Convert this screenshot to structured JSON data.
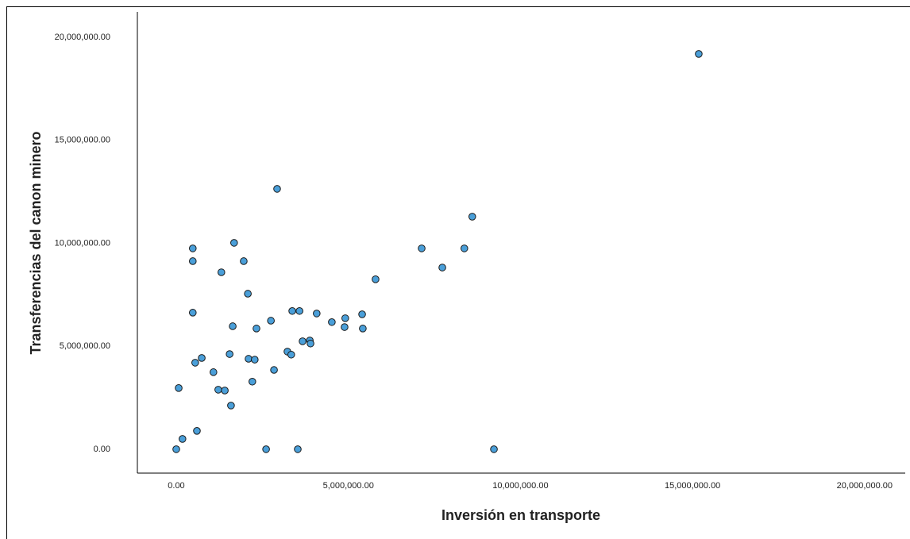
{
  "chart_data": {
    "type": "scatter",
    "x_label": "Inversión en transporte",
    "y_label": "Transferencias del canon minero",
    "x": [
      15180000,
      2930000,
      8600000,
      7130000,
      8370000,
      1680000,
      480000,
      480000,
      1960000,
      1310000,
      7730000,
      5790000,
      2080000,
      480000,
      3370000,
      3580000,
      4080000,
      5400000,
      4910000,
      2750000,
      4520000,
      1640000,
      4890000,
      2330000,
      5420000,
      3880000,
      3670000,
      3900000,
      3230000,
      3340000,
      1550000,
      740000,
      550000,
      2100000,
      2280000,
      2840000,
      1080000,
      2210000,
      70000,
      1220000,
      1410000,
      1590000,
      600000,
      180000,
      0,
      2610000,
      3530000,
      9230000
    ],
    "series": [
      {
        "color": "#4a9fd9",
        "values": [
          19190000,
          12640000,
          11290000,
          9750000,
          9750000,
          10020000,
          9750000,
          9130000,
          9130000,
          8590000,
          8820000,
          8250000,
          7550000,
          6630000,
          6710000,
          6710000,
          6590000,
          6550000,
          6360000,
          6240000,
          6170000,
          5970000,
          5930000,
          5860000,
          5860000,
          5280000,
          5240000,
          5130000,
          4740000,
          4590000,
          4620000,
          4430000,
          4200000,
          4390000,
          4350000,
          3850000,
          3740000,
          3280000,
          2970000,
          2890000,
          2850000,
          2120000,
          890000,
          500000,
          0,
          0,
          0,
          0
        ]
      }
    ],
    "xlim": [
      -1130000,
      21180000
    ],
    "ylim": [
      -1160000,
      21230000
    ],
    "xticks": [
      {
        "value": 0,
        "label": "0.00"
      },
      {
        "value": 5000000,
        "label": "5,000,000.00"
      },
      {
        "value": 10000000,
        "label": "10,000,000.00"
      },
      {
        "value": 15000000,
        "label": "15,000,000.00"
      },
      {
        "value": 20000000,
        "label": "20,000,000.00"
      }
    ],
    "yticks": [
      {
        "value": 0,
        "label": "0.00"
      },
      {
        "value": 5000000,
        "label": "5,000,000.00"
      },
      {
        "value": 10000000,
        "label": "10,000,000.00"
      },
      {
        "value": 15000000,
        "label": "15,000,000.00"
      },
      {
        "value": 20000000,
        "label": "20,000,000.00"
      }
    ],
    "grid": false
  }
}
